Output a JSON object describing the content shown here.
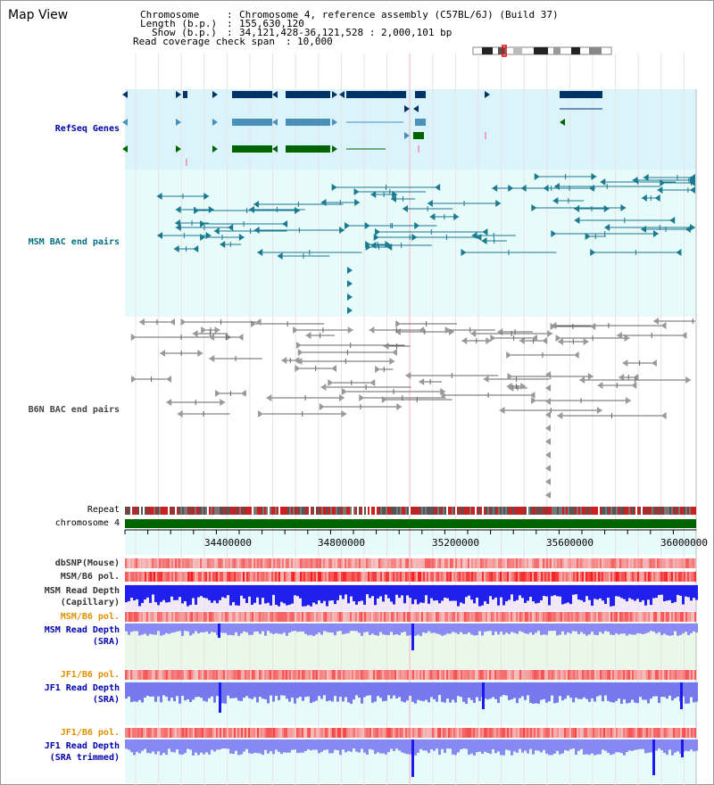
{
  "window": {
    "title": "Map View"
  },
  "header": {
    "chromosome_label": "Chromosome",
    "chromosome_value": "Chromosome 4, reference assembly (C57BL/6J) (Build 37)",
    "length_label": "Length (b.p.)",
    "length_value": "155,630,120",
    "show_label": "Show (b.p.)",
    "show_value": "34,121,428-36,121,528 : 2,000,101 bp",
    "coverage_label": "Read coverage check span",
    "coverage_value": "10,000"
  },
  "tracks": {
    "refseq": "RefSeq Genes",
    "msm_bac": "MSM BAC end pairs",
    "b6n_bac": "B6N BAC end pairs",
    "repeat": "Repeat",
    "chromosome": "chromosome 4",
    "dbsnp": "dbSNP(Mouse)",
    "msm_b6_pol": "MSM/B6 pol.",
    "msm_read_depth_1": "MSM Read Depth",
    "msm_read_depth_1b": "(Capillary)",
    "msm_b6_pol_2": "MSM/B6 pol.",
    "msm_read_depth_2": "MSM Read Depth",
    "msm_read_depth_2b": "(SRA)",
    "jf1_b6_pol": "JF1/B6 pol.",
    "jf1_read_depth": "JF1 Read Depth",
    "jf1_read_depth_b": "(SRA)",
    "jf1_b6_pol_2": "JF1/B6 pol.",
    "jf1_read_depth_trim": "JF1 Read Depth",
    "jf1_read_depth_trim_b": "(SRA trimmed)"
  },
  "axis": {
    "ticks": [
      "34400000",
      "34800000",
      "35200000",
      "35600000",
      "36000000"
    ]
  },
  "colors": {
    "refseq_bg": "#dbf3fb",
    "msm_bg": "#e6fbfb",
    "gene_dark": "#003366",
    "gene_mid": "#4a90b8",
    "gene_green": "#006400",
    "msm_pair": "#1a7a90",
    "b6n_pair": "#666666",
    "chromosome_bar": "#006400",
    "depth_blue": "#1a1aee",
    "depth_light": "#8a8af5",
    "pol_red": "#ee2222",
    "label_blue": "#0000aa",
    "label_teal": "#006f80",
    "label_orange": "#e09000",
    "label_gray": "#333333"
  }
}
